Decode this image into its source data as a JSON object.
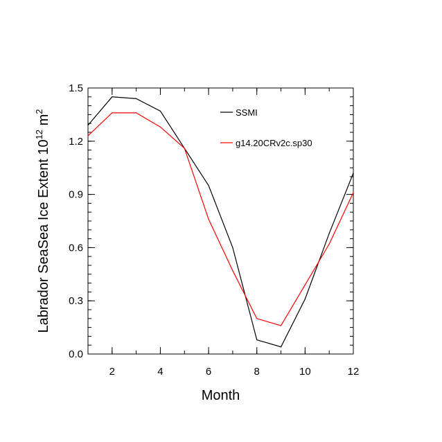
{
  "chart_data": {
    "type": "line",
    "x": [
      1,
      2,
      3,
      4,
      5,
      6,
      7,
      8,
      9,
      10,
      11,
      12
    ],
    "series": [
      {
        "name": "SSMI",
        "color": "#000000",
        "values": [
          1.29,
          1.45,
          1.44,
          1.37,
          1.16,
          0.95,
          0.6,
          0.08,
          0.04,
          0.31,
          0.68,
          1.02
        ]
      },
      {
        "name": "g14.20CRv2c.sp30",
        "color": "#ff0000",
        "values": [
          1.23,
          1.36,
          1.36,
          1.28,
          1.16,
          0.76,
          0.47,
          0.2,
          0.16,
          0.39,
          0.62,
          0.91
        ]
      }
    ],
    "xlabel": "Month",
    "ylabel_main": "Labrador SeaSea Ice Extent 10",
    "ylabel_exp": "12",
    "ylabel_unit": " m",
    "ylabel_unit_exp": "2",
    "xlim": [
      1,
      12
    ],
    "ylim": [
      0,
      1.5
    ],
    "xticks": [
      2,
      4,
      6,
      8,
      10,
      12
    ],
    "yticks": [
      0,
      0.3,
      0.6,
      0.9,
      1.2,
      1.5
    ],
    "ytick_labels": [
      "0.0",
      "0.3",
      "0.6",
      "0.9",
      "1.2",
      "1.5"
    ],
    "legend_position": "top-right inside",
    "grid": false
  }
}
